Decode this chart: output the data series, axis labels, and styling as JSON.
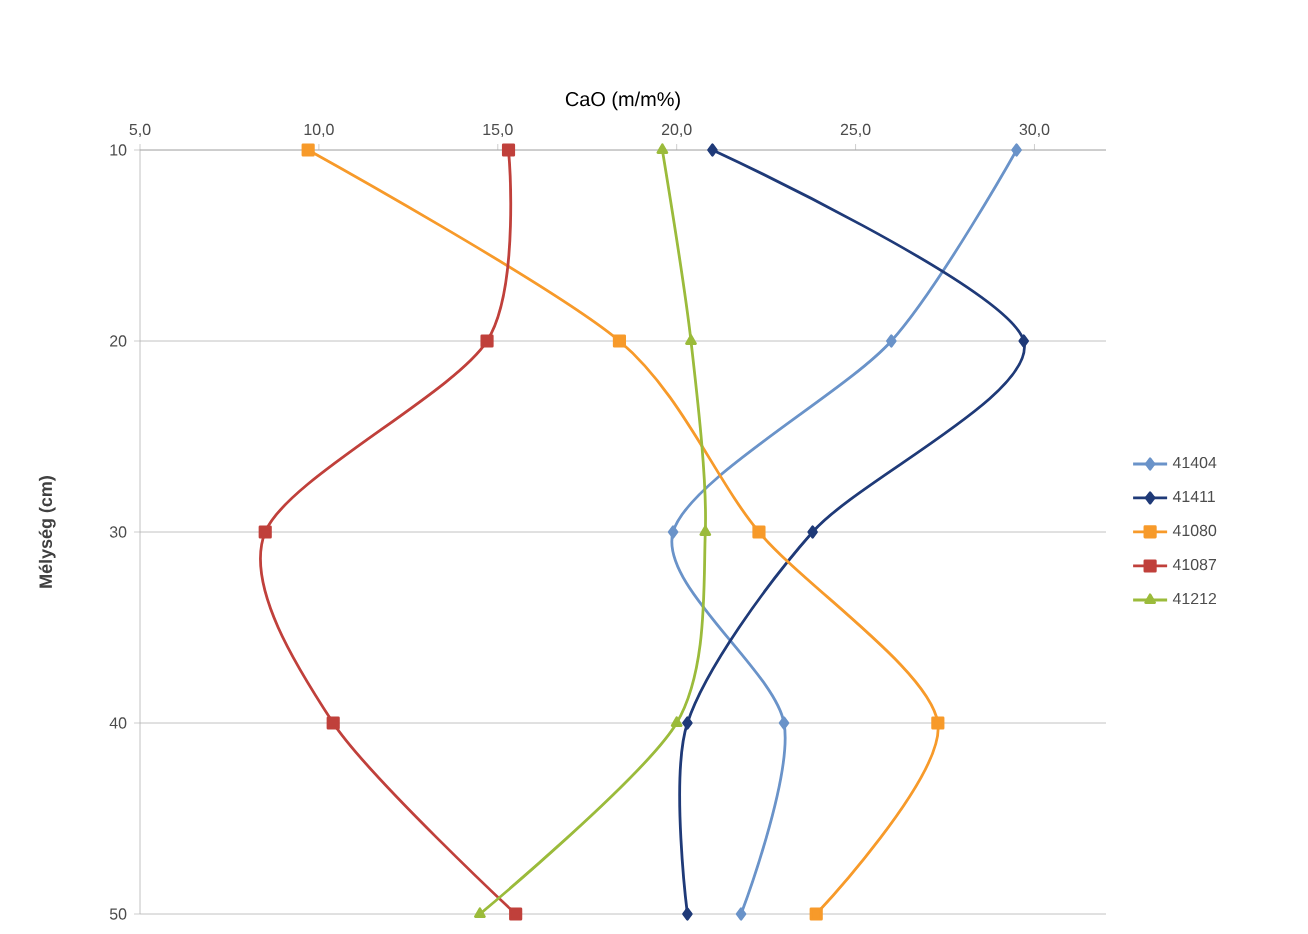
{
  "chart_data": {
    "type": "line",
    "xlabel": "CaO (m/m%)",
    "ylabel": "Mélység (cm)",
    "xlim": [
      5,
      32
    ],
    "xticks": [
      {
        "value": 5,
        "label": "5,0"
      },
      {
        "value": 10,
        "label": "10,0"
      },
      {
        "value": 15,
        "label": "15,0"
      },
      {
        "value": 20,
        "label": "20,0"
      },
      {
        "value": 25,
        "label": "25,0"
      },
      {
        "value": 30,
        "label": "30,0"
      }
    ],
    "ylim": [
      50,
      10
    ],
    "yticks": [
      10,
      20,
      30,
      40,
      50
    ],
    "grid": "y",
    "legend": "right",
    "series": [
      {
        "name": "41404",
        "color": "#6a93c9",
        "marker": "diamond",
        "x": [
          29.5,
          26.0,
          19.9,
          23.0,
          21.8
        ],
        "values": [
          10,
          20,
          30,
          40,
          50
        ]
      },
      {
        "name": "41411",
        "color": "#1f3a78",
        "marker": "diamond",
        "x": [
          21.0,
          29.7,
          23.8,
          20.3,
          20.3
        ],
        "values": [
          10,
          20,
          30,
          40,
          50
        ]
      },
      {
        "name": "41080",
        "color": "#f79a2a",
        "marker": "square",
        "x": [
          9.7,
          18.4,
          22.3,
          27.3,
          23.9
        ],
        "values": [
          10,
          20,
          30,
          40,
          50
        ]
      },
      {
        "name": "41087",
        "color": "#c0403b",
        "marker": "square",
        "x": [
          15.3,
          14.7,
          8.5,
          10.4,
          15.5
        ],
        "values": [
          10,
          20,
          30,
          40,
          50
        ]
      },
      {
        "name": "41212",
        "color": "#9bbb3b",
        "marker": "triangle",
        "x": [
          19.6,
          20.4,
          20.8,
          20.0,
          14.5
        ],
        "values": [
          10,
          20,
          30,
          40,
          50
        ]
      }
    ]
  }
}
